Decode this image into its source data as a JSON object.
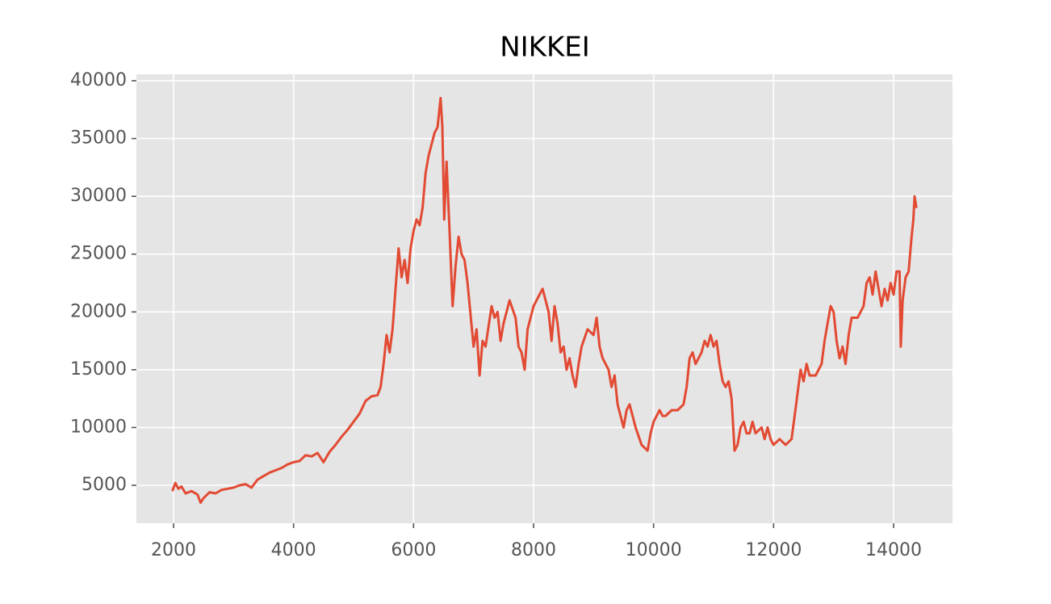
{
  "chart_data": {
    "type": "line",
    "title": "NIKKEI",
    "x": [
      1980,
      2030,
      2080,
      2130,
      2200,
      2300,
      2400,
      2450,
      2500,
      2600,
      2700,
      2800,
      2900,
      3000,
      3100,
      3200,
      3300,
      3400,
      3500,
      3600,
      3700,
      3800,
      3900,
      4000,
      4100,
      4200,
      4300,
      4400,
      4500,
      4600,
      4700,
      4800,
      4900,
      5000,
      5100,
      5200,
      5300,
      5400,
      5450,
      5500,
      5550,
      5600,
      5650,
      5700,
      5750,
      5800,
      5850,
      5900,
      5950,
      6000,
      6050,
      6100,
      6150,
      6200,
      6250,
      6300,
      6350,
      6400,
      6450,
      6480,
      6510,
      6550,
      6600,
      6650,
      6700,
      6750,
      6800,
      6850,
      6900,
      7000,
      7050,
      7100,
      7150,
      7200,
      7300,
      7350,
      7400,
      7450,
      7500,
      7600,
      7700,
      7750,
      7800,
      7850,
      7900,
      8000,
      8100,
      8150,
      8200,
      8250,
      8300,
      8350,
      8400,
      8450,
      8500,
      8550,
      8600,
      8650,
      8700,
      8750,
      8800,
      8900,
      9000,
      9050,
      9100,
      9150,
      9200,
      9250,
      9300,
      9350,
      9400,
      9450,
      9500,
      9550,
      9600,
      9650,
      9700,
      9800,
      9900,
      9950,
      10000,
      10050,
      10100,
      10150,
      10200,
      10300,
      10400,
      10500,
      10550,
      10600,
      10650,
      10700,
      10750,
      10800,
      10850,
      10900,
      10950,
      11000,
      11050,
      11100,
      11150,
      11200,
      11250,
      11300,
      11350,
      11400,
      11450,
      11500,
      11550,
      11600,
      11650,
      11700,
      11800,
      11850,
      11900,
      11950,
      12000,
      12100,
      12200,
      12300,
      12350,
      12400,
      12450,
      12500,
      12550,
      12600,
      12700,
      12800,
      12850,
      12900,
      12950,
      13000,
      13050,
      13100,
      13150,
      13200,
      13250,
      13300,
      13400,
      13500,
      13550,
      13600,
      13650,
      13700,
      13750,
      13800,
      13850,
      13900,
      13950,
      14000,
      14050,
      14100,
      14120,
      14150,
      14200,
      14250,
      14300,
      14330,
      14350,
      14380
    ],
    "series": [
      {
        "name": "NIKKEI",
        "color": "#E24A33",
        "values": [
          4500,
          5200,
          4700,
          4900,
          4300,
          4500,
          4200,
          3500,
          3900,
          4400,
          4300,
          4600,
          4700,
          4800,
          5000,
          5100,
          4800,
          5500,
          5800,
          6100,
          6300,
          6500,
          6800,
          7000,
          7100,
          7600,
          7500,
          7800,
          7000,
          7900,
          8500,
          9200,
          9800,
          10500,
          11200,
          12300,
          12700,
          12800,
          13500,
          15500,
          18000,
          16500,
          18500,
          22000,
          25500,
          23000,
          24500,
          22500,
          25500,
          27000,
          28000,
          27500,
          29000,
          32000,
          33500,
          34500,
          35500,
          36000,
          38500,
          36000,
          28000,
          33000,
          27000,
          20500,
          24000,
          26500,
          25000,
          24500,
          22500,
          17000,
          18500,
          14500,
          17500,
          17000,
          20500,
          19500,
          20000,
          17500,
          19000,
          21000,
          19500,
          17000,
          16500,
          15000,
          18500,
          20500,
          21500,
          22000,
          21000,
          20000,
          17500,
          20500,
          19000,
          16500,
          17000,
          15000,
          16000,
          14500,
          13500,
          15500,
          17000,
          18500,
          18000,
          19500,
          17000,
          16000,
          15500,
          15000,
          13500,
          14500,
          12000,
          11000,
          10000,
          11500,
          12000,
          11000,
          10000,
          8500,
          8000,
          9500,
          10500,
          11000,
          11500,
          11000,
          11000,
          11500,
          11500,
          12000,
          13500,
          16000,
          16500,
          15500,
          16000,
          16500,
          17500,
          17000,
          18000,
          17000,
          17500,
          15500,
          14000,
          13500,
          14000,
          12500,
          8000,
          8500,
          10000,
          10500,
          9500,
          9500,
          10500,
          9500,
          10000,
          9000,
          10000,
          9000,
          8500,
          9000,
          8500,
          9000,
          11000,
          13000,
          15000,
          14000,
          15500,
          14500,
          14500,
          15500,
          17500,
          19000,
          20500,
          20000,
          17500,
          16000,
          17000,
          15500,
          18000,
          19500,
          19500,
          20500,
          22500,
          23000,
          21500,
          23500,
          22000,
          20500,
          22000,
          21000,
          22500,
          21500,
          23500,
          23500,
          17000,
          21000,
          23000,
          23500,
          26500,
          28000,
          30000,
          29000
        ]
      }
    ],
    "xlim": [
      1381,
      14982
    ],
    "ylim": [
      1717,
      40560
    ],
    "xticks": [
      2000,
      4000,
      6000,
      8000,
      10000,
      12000,
      14000
    ],
    "yticks": [
      5000,
      10000,
      15000,
      20000,
      25000,
      30000,
      35000,
      40000
    ],
    "grid": true
  }
}
